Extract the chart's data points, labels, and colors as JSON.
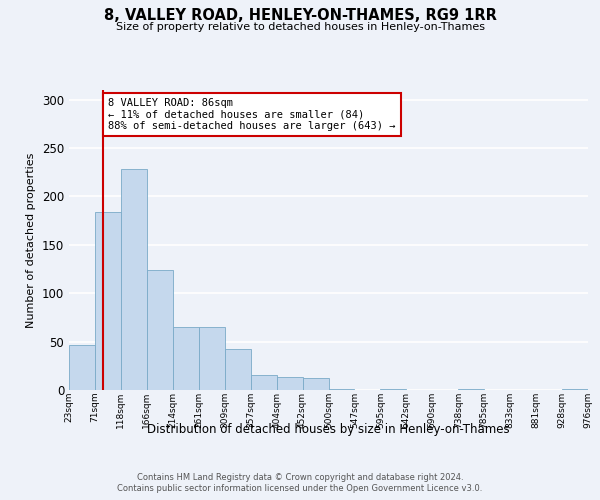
{
  "title": "8, VALLEY ROAD, HENLEY-ON-THAMES, RG9 1RR",
  "subtitle": "Size of property relative to detached houses in Henley-on-Thames",
  "xlabel": "Distribution of detached houses by size in Henley-on-Thames",
  "ylabel": "Number of detached properties",
  "bar_values": [
    47,
    184,
    228,
    124,
    65,
    65,
    42,
    16,
    13,
    12,
    1,
    0,
    1,
    0,
    0,
    1,
    0,
    0,
    0,
    1
  ],
  "categories": [
    "23sqm",
    "71sqm",
    "118sqm",
    "166sqm",
    "214sqm",
    "261sqm",
    "309sqm",
    "357sqm",
    "404sqm",
    "452sqm",
    "500sqm",
    "547sqm",
    "595sqm",
    "642sqm",
    "690sqm",
    "738sqm",
    "785sqm",
    "833sqm",
    "881sqm",
    "928sqm",
    "976sqm"
  ],
  "bar_color": "#c5d8ed",
  "bar_edge_color": "#7aaac8",
  "vline_color": "#cc0000",
  "ylim": [
    0,
    310
  ],
  "yticks": [
    0,
    50,
    100,
    150,
    200,
    250,
    300
  ],
  "background_color": "#eef2f9",
  "grid_color": "#ffffff",
  "ann_title": "8 VALLEY ROAD: 86sqm",
  "ann_line1": "← 11% of detached houses are smaller (84)",
  "ann_line2": "88% of semi-detached houses are larger (643) →",
  "footer1": "Contains HM Land Registry data © Crown copyright and database right 2024.",
  "footer2": "Contains public sector information licensed under the Open Government Licence v3.0.",
  "prop_sqm": 86,
  "bin_starts": [
    23,
    71,
    118,
    166,
    214,
    261,
    309,
    357,
    404,
    452,
    500,
    547,
    595,
    642,
    690,
    738,
    785,
    833,
    881,
    928
  ],
  "bin_size": 47
}
